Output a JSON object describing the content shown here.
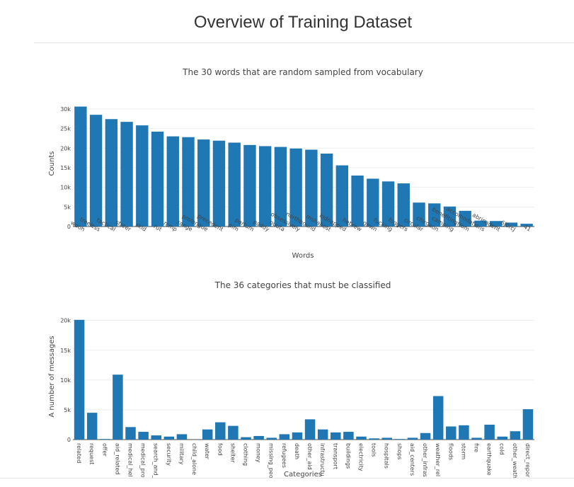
{
  "page": {
    "title": "Overview of Training Dataset"
  },
  "chart_data": [
    {
      "type": "bar",
      "title": "The 30 words that are random sampled from vocabulary",
      "xlabel": "Words",
      "ylabel": "Counts",
      "ylim": [
        0,
        30700
      ],
      "yticks": [
        0,
        5000,
        10000,
        15000,
        20000,
        25000,
        30000
      ],
      "ytick_labels": [
        "0",
        "5k",
        "10k",
        "15k",
        "20k",
        "25k",
        "30k"
      ],
      "grid": true,
      "color": "#1f77b4",
      "categories": [
        "wooh",
        "treeless",
        "tactical",
        "streer",
        "skid",
        "rut",
        "rcmp",
        "range",
        "prolongue",
        "precedent",
        "pim",
        "partum",
        "paddy",
        "ouuta",
        "obsessively",
        "northbound",
        "mshahost",
        "kidnapped",
        "hebrew",
        "gown",
        "fucking",
        "foggers",
        "circular",
        "chirgaon",
        "camping",
        "benefitingfrom",
        "accomodations",
        "abrinadent",
        "6J0rcJ",
        "41"
      ],
      "values": [
        30600,
        28500,
        27400,
        26700,
        25800,
        24200,
        23000,
        22800,
        22200,
        21900,
        21400,
        20800,
        20500,
        20300,
        19900,
        19600,
        18600,
        15600,
        13000,
        12200,
        11500,
        11000,
        6100,
        5900,
        5100,
        4000,
        1500,
        1400,
        1000,
        700
      ]
    },
    {
      "type": "bar",
      "title": "The 36 categories that must be classified",
      "xlabel": "Categories",
      "ylabel": "A number of messages",
      "ylim": [
        0,
        20200
      ],
      "yticks": [
        0,
        5000,
        10000,
        15000,
        20000
      ],
      "ytick_labels": [
        "0",
        "5k",
        "10k",
        "15k",
        "20k"
      ],
      "grid": true,
      "color": "#1f77b4",
      "categories": [
        "related",
        "request",
        "offer",
        "aid_related",
        "medical_hel",
        "medical_pro",
        "search_and_",
        "security",
        "military",
        "child_alone",
        "water",
        "food",
        "shelter",
        "clothing",
        "money",
        "missing_peo",
        "refugees",
        "death",
        "other_aid",
        "infrastructu",
        "transport",
        "buildings",
        "electricity",
        "tools",
        "hospitals",
        "shops",
        "aid_centers",
        "other_infras",
        "weather_rel",
        "floods",
        "storm",
        "fire",
        "earthquake",
        "cold",
        "other_weath",
        "direct_repor"
      ],
      "values": [
        20100,
        4500,
        100,
        10900,
        2100,
        1300,
        700,
        500,
        900,
        0,
        1700,
        2900,
        2300,
        400,
        600,
        300,
        900,
        1200,
        3400,
        1700,
        1200,
        1300,
        500,
        200,
        300,
        100,
        300,
        1100,
        7300,
        2200,
        2400,
        300,
        2500,
        500,
        1400,
        5100
      ]
    }
  ]
}
